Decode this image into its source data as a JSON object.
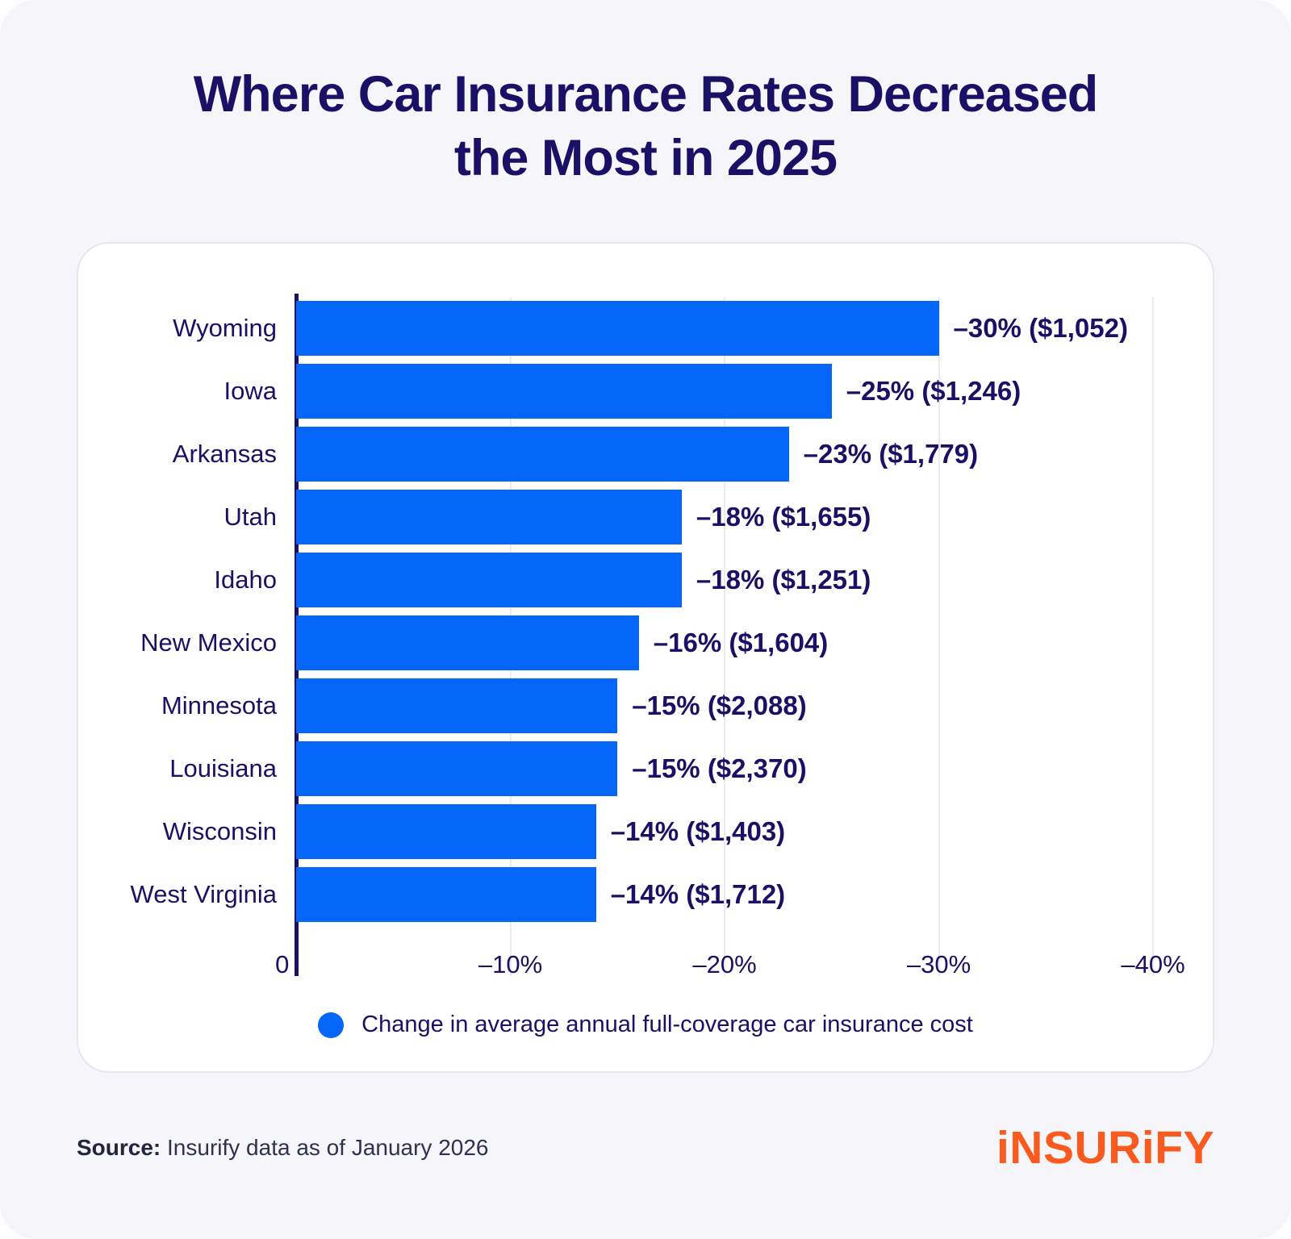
{
  "title": {
    "line1": "Where Car Insurance Rates Decreased",
    "line2": "the Most in 2025"
  },
  "chart_data": {
    "type": "bar",
    "orientation": "horizontal",
    "categories": [
      "Wyoming",
      "Iowa",
      "Arkansas",
      "Utah",
      "Idaho",
      "New Mexico",
      "Minnesota",
      "Louisiana",
      "Wisconsin",
      "West Virginia"
    ],
    "values": [
      -30,
      -25,
      -23,
      -18,
      -18,
      -16,
      -15,
      -15,
      -14,
      -14
    ],
    "dollar_amounts": [
      1052,
      1246,
      1779,
      1655,
      1251,
      1604,
      2088,
      2370,
      1403,
      1712
    ],
    "value_labels": [
      "–30% ($1,052)",
      "–25% ($1,246)",
      "–23% ($1,779)",
      "–18% ($1,655)",
      "–18% ($1,251)",
      "–16% ($1,604)",
      "–15% ($2,088)",
      "–15% ($2,370)",
      "–14% ($1,403)",
      "–14% ($1,712)"
    ],
    "x_ticks": [
      "0",
      "–10%",
      "–20%",
      "–30%",
      "–40%"
    ],
    "xlim": [
      0,
      -40
    ],
    "grid": "vertical-light",
    "legend_position": "bottom-center",
    "legend_label": "Change in average annual full-coverage car insurance cost",
    "bar_color": "#0566fa",
    "axis_color": "#1a1066",
    "text_color": "#1a1066"
  },
  "footer": {
    "source_label": "Source:",
    "source_text": "Insurify data as of January 2026",
    "logo_text": "iNSURiFY"
  }
}
